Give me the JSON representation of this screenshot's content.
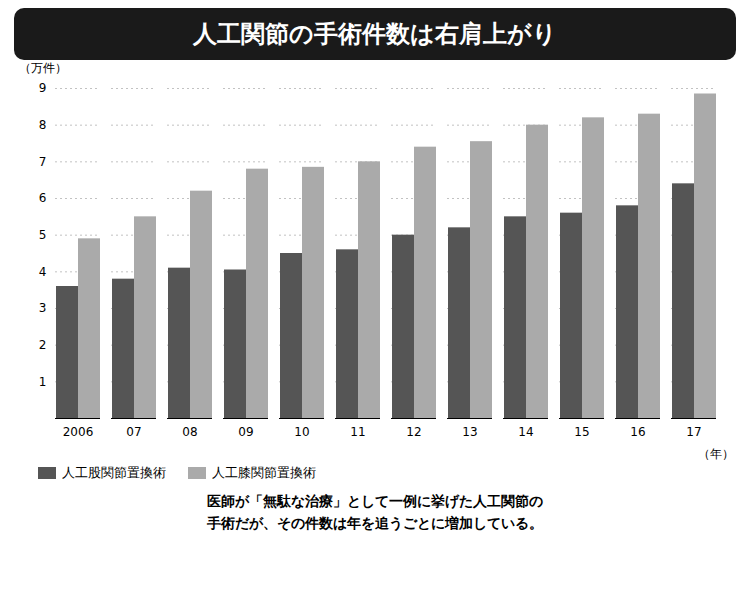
{
  "chart_data": {
    "type": "bar",
    "title": "人工関節の手術件数は右肩上がり",
    "ylabel": "（万件）",
    "xlabel": "（年）",
    "categories": [
      "2006",
      "07",
      "08",
      "09",
      "10",
      "11",
      "12",
      "13",
      "14",
      "15",
      "16",
      "17"
    ],
    "series": [
      {
        "name": "人工股関節置換術",
        "color": "#555555",
        "values": [
          3.6,
          3.8,
          4.1,
          4.05,
          4.5,
          4.6,
          5.0,
          5.2,
          5.5,
          5.6,
          5.8,
          6.4
        ]
      },
      {
        "name": "人工膝関節置換術",
        "color": "#aaaaaa",
        "values": [
          4.9,
          5.5,
          6.2,
          6.8,
          6.85,
          7.0,
          7.4,
          7.55,
          8.0,
          8.2,
          8.3,
          8.85
        ]
      }
    ],
    "ylim": [
      0,
      9
    ],
    "yticks": [
      1,
      2,
      3,
      4,
      5,
      6,
      7,
      8,
      9
    ],
    "grid": true,
    "legend": "lower left",
    "annotations": [
      "医師が「無駄な治療」として一例に挙げた人工関節の",
      "手術だが、その件数は年を追うごとに増加している。"
    ]
  }
}
